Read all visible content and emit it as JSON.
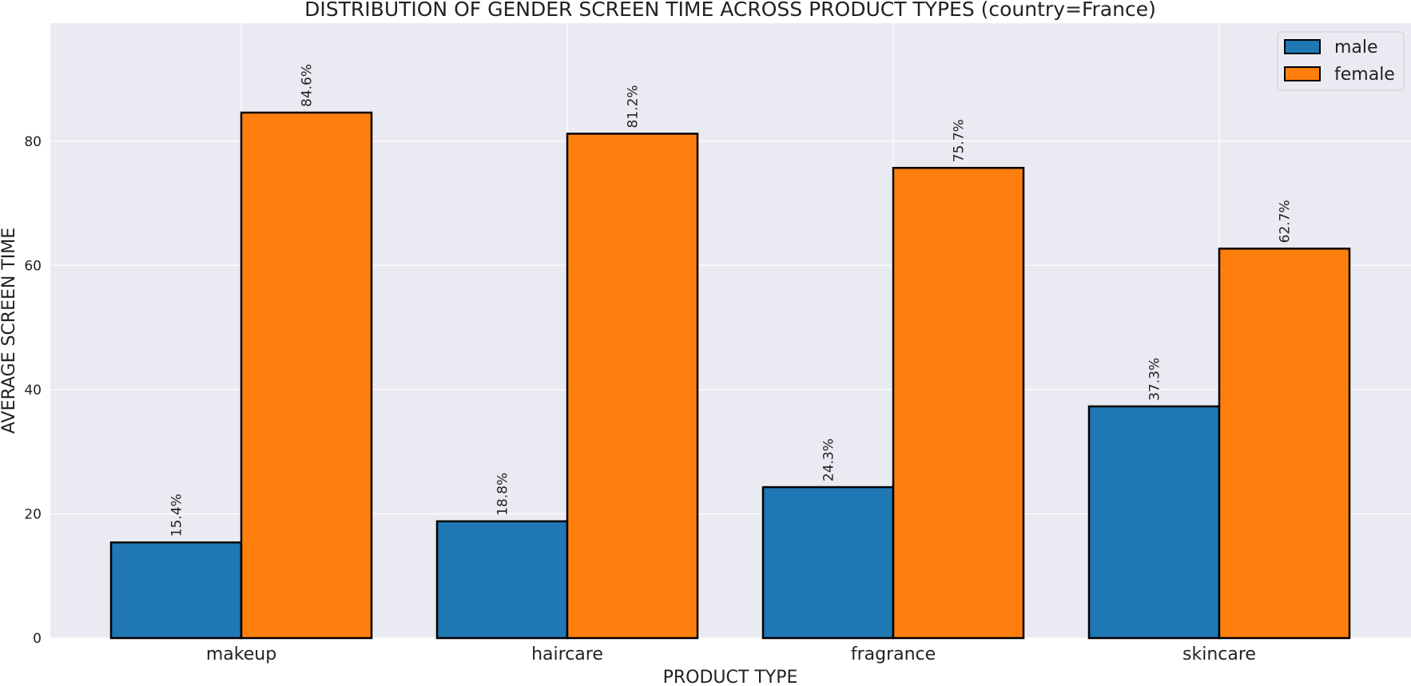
{
  "chart_data": {
    "type": "bar",
    "title": "DISTRIBUTION OF GENDER SCREEN TIME ACROSS PRODUCT TYPES (country=France)",
    "xlabel": "PRODUCT TYPE",
    "ylabel": "AVERAGE SCREEN TIME",
    "categories": [
      "makeup",
      "haircare",
      "fragrance",
      "skincare"
    ],
    "series": [
      {
        "name": "male",
        "color": "#1f77b4",
        "values": [
          15.4,
          18.8,
          24.3,
          37.3
        ],
        "labels": [
          "15.4%",
          "18.8%",
          "24.3%",
          "37.3%"
        ]
      },
      {
        "name": "female",
        "color": "#ff7f0e",
        "values": [
          84.6,
          81.2,
          75.7,
          62.7
        ],
        "labels": [
          "84.6%",
          "81.2%",
          "75.7%",
          "62.7%"
        ]
      }
    ],
    "ylim": [
      0,
      99
    ],
    "yticks": [
      0,
      20,
      40,
      60,
      80
    ],
    "grid": true,
    "legend_position": "top-right",
    "background_color": "#eaeaf2"
  }
}
